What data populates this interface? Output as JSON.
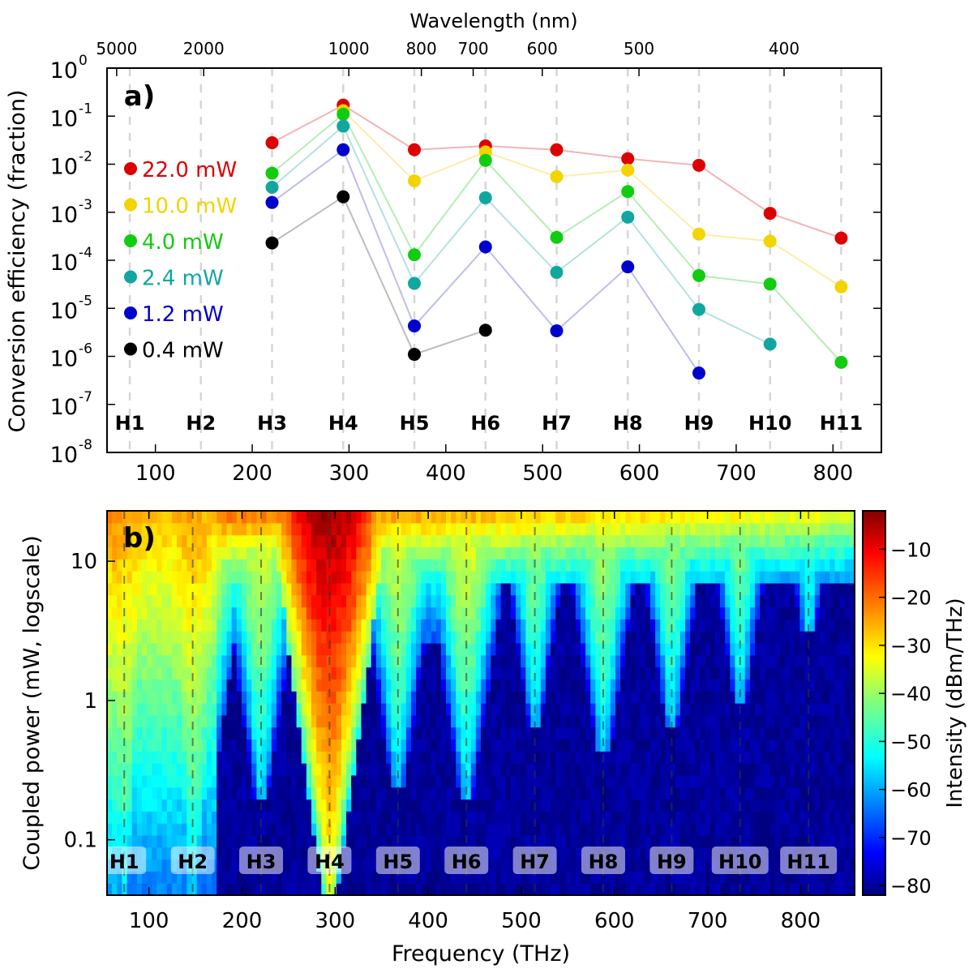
{
  "chart_data": [
    {
      "id": "a",
      "type": "scatter",
      "panel_label": "a)",
      "xlabel_top": "Wavelength (nm)",
      "ylabel": "Conversion efficiency (fraction)",
      "x_scale": "linear",
      "y_scale": "log",
      "xlim": [
        50,
        850
      ],
      "ylim": [
        1e-08,
        1
      ],
      "xticks": [
        100,
        200,
        300,
        400,
        500,
        600,
        700,
        800
      ],
      "xtick_labels": [
        "100",
        "200",
        "300",
        "400",
        "500",
        "600",
        "700",
        "800"
      ],
      "ytick_exponents": [
        -8,
        -7,
        -6,
        -5,
        -4,
        -3,
        -2,
        -1,
        0
      ],
      "ytick_base": "10",
      "wavelength_ticks_nm": [
        5000,
        2000,
        1000,
        800,
        700,
        600,
        500,
        400
      ],
      "wavelength_tick_labels": [
        "5000",
        "2000",
        "1000",
        "800",
        "700",
        "600",
        "500",
        "400"
      ],
      "harmonic_freqs_thz": [
        73.5,
        147,
        220.5,
        294,
        367.5,
        441,
        514.5,
        588,
        661.5,
        735,
        808.5
      ],
      "harmonic_labels": [
        "H1",
        "H2",
        "H3",
        "H4",
        "H5",
        "H6",
        "H7",
        "H8",
        "H9",
        "H10",
        "H11"
      ],
      "legend_position": "center-left",
      "series": [
        {
          "name": "22.0 mW",
          "color": "#dd0000",
          "line_color": "#f2b4b4",
          "x": [
            220.5,
            294,
            367.5,
            441,
            514.5,
            588,
            661.5,
            735,
            808.5
          ],
          "y": [
            0.028,
            0.17,
            0.02,
            0.024,
            0.02,
            0.013,
            0.0095,
            0.00095,
            0.00029
          ]
        },
        {
          "name": "10.0 mW",
          "color": "#f2d400",
          "line_color": "#fbeeaa",
          "x": [
            294,
            367.5,
            441,
            514.5,
            588,
            661.5,
            735,
            808.5
          ],
          "y": [
            0.13,
            0.0045,
            0.018,
            0.0055,
            0.0075,
            0.00035,
            0.00025,
            2.8e-05
          ]
        },
        {
          "name": "4.0 mW",
          "color": "#11cc11",
          "line_color": "#b4eeb4",
          "x": [
            220.5,
            294,
            367.5,
            441,
            514.5,
            588,
            661.5,
            735,
            808.5
          ],
          "y": [
            0.0065,
            0.11,
            0.00013,
            0.012,
            0.0003,
            0.0027,
            4.8e-05,
            3.2e-05,
            7.5e-07
          ]
        },
        {
          "name": "2.4 mW",
          "color": "#11a7a0",
          "line_color": "#b4e2e0",
          "x": [
            220.5,
            294,
            367.5,
            441,
            514.5,
            588,
            661.5,
            735
          ],
          "y": [
            0.0033,
            0.062,
            3.3e-05,
            0.002,
            5.6e-05,
            0.00079,
            9.5e-06,
            1.8e-06
          ]
        },
        {
          "name": "1.2 mW",
          "color": "#0000cc",
          "line_color": "#bdbdee",
          "x": [
            220.5,
            294,
            367.5,
            441,
            514.5,
            588,
            661.5
          ],
          "y": [
            0.0016,
            0.02,
            4.3e-06,
            0.00019,
            3.4e-06,
            7.3e-05,
            4.5e-07
          ]
        },
        {
          "name": "0.4 mW",
          "color": "#000000",
          "line_color": "#bdbdbd",
          "x": [
            220.5,
            294,
            367.5,
            441
          ],
          "y": [
            0.00023,
            0.0021,
            1.1e-06,
            3.5e-06
          ]
        }
      ]
    },
    {
      "id": "b",
      "type": "heatmap",
      "panel_label": "b)",
      "xlabel": "Frequency (THz)",
      "ylabel": "Coupled power (mW, logscale)",
      "x_scale": "linear",
      "y_scale": "log",
      "xlim": [
        55,
        858
      ],
      "ylim": [
        0.04,
        23
      ],
      "xticks": [
        100,
        200,
        300,
        400,
        500,
        600,
        700,
        800
      ],
      "xtick_labels": [
        "100",
        "200",
        "300",
        "400",
        "500",
        "600",
        "700",
        "800"
      ],
      "yticks": [
        0.1,
        1,
        10
      ],
      "ytick_labels": [
        "0.1",
        "1",
        "10"
      ],
      "colorbar_label": "Intensity (dBm/THz)",
      "colorbar_range": [
        -82,
        -2
      ],
      "colorbar_ticks": [
        -10,
        -20,
        -30,
        -40,
        -50,
        -60,
        -70,
        -80
      ],
      "colorbar_tick_labels": [
        "−10",
        "−20",
        "−30",
        "−40",
        "−50",
        "−60",
        "−70",
        "−80"
      ],
      "colormap": "jet",
      "harmonic_freqs_thz": [
        73.5,
        147,
        220.5,
        294,
        367.5,
        441,
        514.5,
        588,
        661.5,
        735,
        808.5
      ],
      "harmonic_labels": [
        "H1",
        "H2",
        "H3",
        "H4",
        "H5",
        "H6",
        "H7",
        "H8",
        "H9",
        "H10",
        "H11"
      ],
      "supercontinuum_edge_thz": 172,
      "harmonic_onset_power_mw": [
        0.04,
        0.04,
        0.2,
        0.04,
        0.25,
        0.2,
        0.7,
        0.4,
        0.7,
        1.0,
        3.0
      ],
      "noise_floor_dbm": -80
    }
  ]
}
